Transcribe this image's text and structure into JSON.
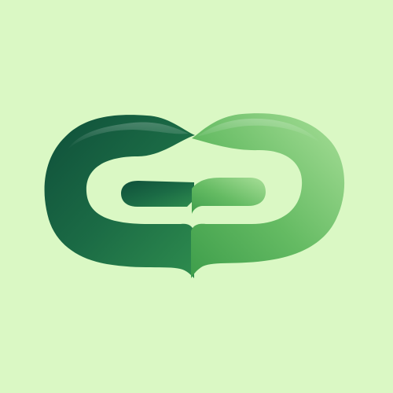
{
  "colors": {
    "background": "#DAF8C4",
    "left_dark": "#0F4F3A",
    "left_mid": "#1B6B45",
    "left_light": "#2E8C4E",
    "right_dark": "#3E9E4B",
    "right_mid": "#65BB63",
    "right_light": "#A8DF98"
  },
  "logo": {
    "name": "mirrored-green-g-logo",
    "icon": "double-g-monogram"
  }
}
